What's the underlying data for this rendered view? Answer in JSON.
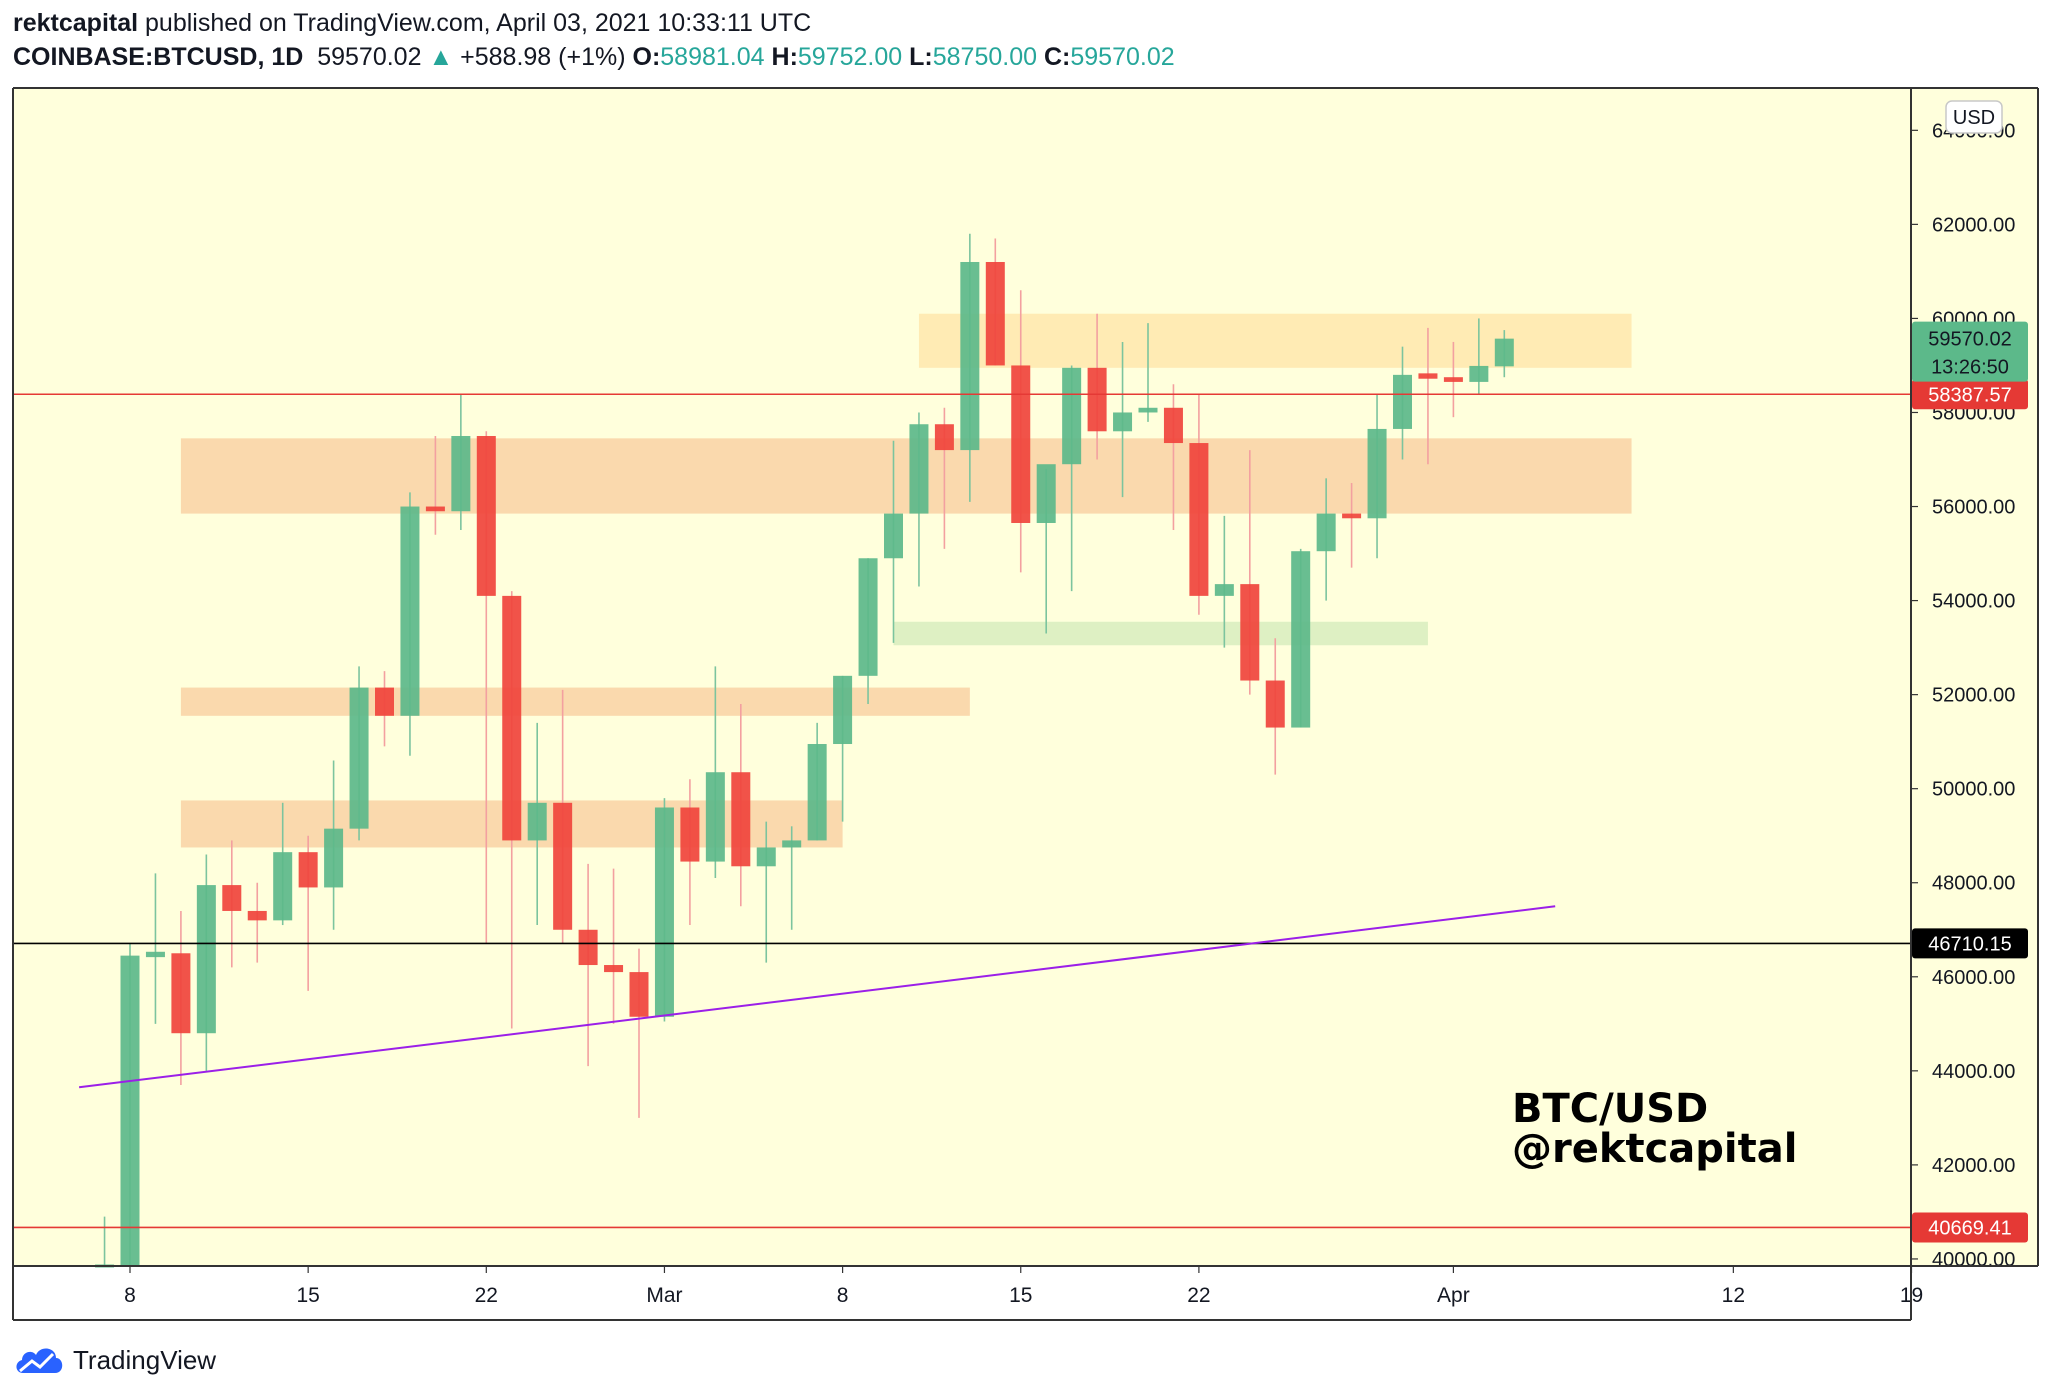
{
  "header": {
    "author": "rektcapital",
    "published": "published on TradingView.com, April 03, 2021 10:33:11 UTC",
    "symbol": "COINBASE:BTCUSD, 1D",
    "last": "59570.02",
    "change_arrow": "▲",
    "change": "+588.98 (+1%)",
    "o_label": "O:",
    "o": "58981.04",
    "h_label": "H:",
    "h": "59752.00",
    "l_label": "L:",
    "l": "58750.00",
    "c_label": "C:",
    "c": "59570.02"
  },
  "footer": {
    "brand": "TradingView",
    "icon": "tradingview-cloud-icon"
  },
  "colors": {
    "up": "#26a69a",
    "up_fill": "#5cb98a",
    "down": "#f23645",
    "down_fill": "#f0443c",
    "background": "#ffffdc",
    "support_zone": "#f9d2a4",
    "resistance_zone": "#ffe7ad",
    "green_zone": "#d8edbe",
    "trendline": "#9b1fe8",
    "red_line": "#e53935",
    "black_line": "#000000"
  },
  "chart_data": {
    "type": "candlestick",
    "title": "",
    "currency_badge": "USD",
    "watermark": [
      "BTC/USD",
      "@rektcapital"
    ],
    "ylim": [
      39850,
      64900
    ],
    "y_ticks": [
      "40000.00",
      "42000.00",
      "44000.00",
      "46000.00",
      "48000.00",
      "50000.00",
      "52000.00",
      "54000.00",
      "56000.00",
      "58000.00",
      "60000.00",
      "62000.00",
      "64000.00"
    ],
    "x_ticks": [
      {
        "label": "8",
        "date": "2021-02-08"
      },
      {
        "label": "15",
        "date": "2021-02-15"
      },
      {
        "label": "22",
        "date": "2021-02-22"
      },
      {
        "label": "Mar",
        "date": "2021-03-01"
      },
      {
        "label": "8",
        "date": "2021-03-08"
      },
      {
        "label": "15",
        "date": "2021-03-15"
      },
      {
        "label": "22",
        "date": "2021-03-22"
      },
      {
        "label": "Apr",
        "date": "2021-04-01"
      },
      {
        "label": "12",
        "date": "2021-04-12"
      },
      {
        "label": "19",
        "date": "2021-04-19"
      }
    ],
    "candles": [
      [
        "2021-02-07",
        38880,
        40900,
        38000,
        39300
      ],
      [
        "2021-02-08",
        39300,
        46700,
        39000,
        46450
      ],
      [
        "2021-02-09",
        46450,
        48200,
        45000,
        46500
      ],
      [
        "2021-02-10",
        46500,
        47400,
        43700,
        44800
      ],
      [
        "2021-02-11",
        44800,
        48600,
        44000,
        47950
      ],
      [
        "2021-02-12",
        47950,
        48900,
        46200,
        47400
      ],
      [
        "2021-02-13",
        47400,
        48000,
        46300,
        47200
      ],
      [
        "2021-02-14",
        47200,
        49700,
        47100,
        48650
      ],
      [
        "2021-02-15",
        48650,
        49000,
        45700,
        47900
      ],
      [
        "2021-02-16",
        47900,
        50600,
        47000,
        49150
      ],
      [
        "2021-02-17",
        49150,
        52600,
        48900,
        52150
      ],
      [
        "2021-02-18",
        52150,
        52500,
        50900,
        51550
      ],
      [
        "2021-02-19",
        51550,
        56300,
        50700,
        56000
      ],
      [
        "2021-02-20",
        56000,
        57500,
        55400,
        55900
      ],
      [
        "2021-02-21",
        55900,
        58400,
        55500,
        57500
      ],
      [
        "2021-02-22",
        57500,
        57600,
        46700,
        54100
      ],
      [
        "2021-02-23",
        54100,
        54200,
        44900,
        48900
      ],
      [
        "2021-02-24",
        48900,
        51400,
        47100,
        49700
      ],
      [
        "2021-02-25",
        49700,
        52100,
        46700,
        47000
      ],
      [
        "2021-02-26",
        47000,
        48400,
        44100,
        46250
      ],
      [
        "2021-02-27",
        46250,
        48300,
        45000,
        46100
      ],
      [
        "2021-02-28",
        46100,
        46600,
        43000,
        45150
      ],
      [
        "2021-03-01",
        45150,
        49800,
        45050,
        49600
      ],
      [
        "2021-03-02",
        49600,
        50200,
        47100,
        48450
      ],
      [
        "2021-03-03",
        48450,
        52600,
        48100,
        50350
      ],
      [
        "2021-03-04",
        50350,
        51800,
        47500,
        48350
      ],
      [
        "2021-03-05",
        48350,
        49300,
        46300,
        48750
      ],
      [
        "2021-03-06",
        48750,
        49200,
        47000,
        48900
      ],
      [
        "2021-03-07",
        48900,
        51400,
        48900,
        50950
      ],
      [
        "2021-03-08",
        50950,
        52400,
        49300,
        52400
      ],
      [
        "2021-03-09",
        52400,
        54900,
        51800,
        54900
      ],
      [
        "2021-03-10",
        54900,
        57400,
        53100,
        55850
      ],
      [
        "2021-03-11",
        55850,
        58000,
        54300,
        57750
      ],
      [
        "2021-03-12",
        57750,
        58100,
        55100,
        57200
      ],
      [
        "2021-03-13",
        57200,
        61800,
        56100,
        61200
      ],
      [
        "2021-03-14",
        61200,
        61700,
        59000,
        59000
      ],
      [
        "2021-03-15",
        59000,
        60600,
        54600,
        55650
      ],
      [
        "2021-03-16",
        55650,
        56800,
        53300,
        56900
      ],
      [
        "2021-03-17",
        56900,
        59000,
        54200,
        58950
      ],
      [
        "2021-03-18",
        58950,
        60100,
        57000,
        57600
      ],
      [
        "2021-03-19",
        57600,
        59500,
        56200,
        58000
      ],
      [
        "2021-03-20",
        58000,
        59900,
        57800,
        58100
      ],
      [
        "2021-03-21",
        58100,
        58600,
        55500,
        57350
      ],
      [
        "2021-03-22",
        57350,
        58400,
        53700,
        54100
      ],
      [
        "2021-03-23",
        54100,
        55800,
        53000,
        54350
      ],
      [
        "2021-03-24",
        54350,
        57200,
        52000,
        52300
      ],
      [
        "2021-03-25",
        52300,
        53200,
        50300,
        51300
      ],
      [
        "2021-03-26",
        51300,
        55100,
        51300,
        55050
      ],
      [
        "2021-03-27",
        55050,
        56600,
        54000,
        55850
      ],
      [
        "2021-03-28",
        55850,
        56500,
        54700,
        55750
      ],
      [
        "2021-03-29",
        55750,
        58400,
        54900,
        57650
      ],
      [
        "2021-03-30",
        57650,
        59400,
        57000,
        58800
      ],
      [
        "2021-03-31",
        58800,
        59800,
        56900,
        58750
      ],
      [
        "2021-04-01",
        58750,
        59500,
        57900,
        58650
      ],
      [
        "2021-04-02",
        58650,
        60000,
        58400,
        58990
      ],
      [
        "2021-04-03",
        58981.04,
        59752,
        58750,
        59570.02
      ]
    ],
    "zones": [
      {
        "kind": "resistance",
        "from": "2021-03-11",
        "to": "2021-04-08",
        "low": 58950,
        "high": 60100
      },
      {
        "kind": "support",
        "from": "2021-02-10",
        "to": "2021-04-08",
        "low": 55850,
        "high": 57450
      },
      {
        "kind": "support",
        "from": "2021-02-10",
        "to": "2021-03-13",
        "low": 51550,
        "high": 52150
      },
      {
        "kind": "support",
        "from": "2021-02-10",
        "to": "2021-03-08",
        "low": 48750,
        "high": 49750
      },
      {
        "kind": "green",
        "from": "2021-03-10",
        "to": "2021-03-31",
        "low": 53050,
        "high": 53550
      }
    ],
    "trendline": {
      "from": [
        "2021-02-06",
        43650
      ],
      "to": [
        "2021-04-05",
        47500
      ]
    },
    "horizontal_lines": [
      {
        "value": 58387.57,
        "label": "58387.57",
        "color": "red"
      },
      {
        "value": 46710.15,
        "label": "46710.15",
        "color": "black"
      },
      {
        "value": 40669.41,
        "label": "40669.41",
        "color": "red"
      }
    ],
    "last_price": {
      "value": 59570.02,
      "label": "59570.02",
      "countdown": "13:26:50"
    }
  }
}
